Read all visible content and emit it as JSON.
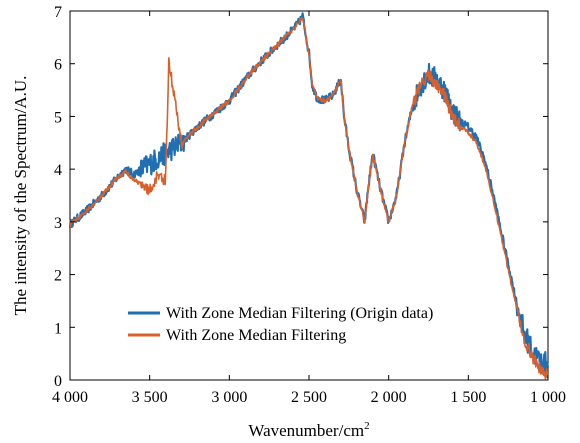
{
  "chart_data": {
    "type": "line",
    "title": "",
    "xlabel": "Wavenumber/cm",
    "xlabel_superscript": "2",
    "ylabel": "The intensity of the Spectrum/A.U.",
    "xlim": [
      4000,
      1000
    ],
    "ylim": [
      0,
      7
    ],
    "x_reversed": true,
    "x_ticks": [
      4000,
      3500,
      3000,
      2500,
      2000,
      1500,
      1000
    ],
    "x_tick_labels": [
      "4 000",
      "3 500",
      "3 000",
      "2 500",
      "2 000",
      "1 500",
      "1 000"
    ],
    "y_ticks": [
      0,
      1,
      2,
      3,
      4,
      5,
      6,
      7
    ],
    "y_tick_labels": [
      "0",
      "1",
      "2",
      "3",
      "4",
      "5",
      "6",
      "7"
    ],
    "grid": false,
    "legend_position": "bottom-left",
    "series": [
      {
        "name": "With Zone Median Filtering (Origin data)",
        "color": "#1f6fb4",
        "noise": 0.22,
        "x": [
          4000,
          3900,
          3800,
          3700,
          3650,
          3600,
          3550,
          3500,
          3450,
          3400,
          3380,
          3300,
          3200,
          3100,
          3000,
          2900,
          2800,
          2700,
          2600,
          2560,
          2540,
          2500,
          2480,
          2450,
          2400,
          2350,
          2300,
          2280,
          2250,
          2200,
          2150,
          2130,
          2100,
          2050,
          2000,
          1950,
          1900,
          1850,
          1800,
          1750,
          1700,
          1650,
          1600,
          1550,
          1500,
          1450,
          1400,
          1350,
          1300,
          1250,
          1200,
          1150,
          1100,
          1050,
          1000
        ],
        "y": [
          2.95,
          3.2,
          3.5,
          3.85,
          4.0,
          3.9,
          4.0,
          4.1,
          4.2,
          4.3,
          4.35,
          4.5,
          4.8,
          5.05,
          5.3,
          5.7,
          6.05,
          6.35,
          6.65,
          6.8,
          6.9,
          6.2,
          5.6,
          5.35,
          5.3,
          5.4,
          5.7,
          5.0,
          4.4,
          3.6,
          3.0,
          3.6,
          4.3,
          3.6,
          3.0,
          3.5,
          4.5,
          5.2,
          5.6,
          5.8,
          5.7,
          5.5,
          5.1,
          4.9,
          4.8,
          4.6,
          4.2,
          3.6,
          2.9,
          2.2,
          1.5,
          0.9,
          0.55,
          0.35,
          0.3
        ]
      },
      {
        "name": "With Zone Median Filtering",
        "color": "#d95f2b",
        "noise": 0.12,
        "x": [
          4000,
          3900,
          3800,
          3700,
          3650,
          3600,
          3550,
          3500,
          3450,
          3400,
          3380,
          3300,
          3200,
          3100,
          3000,
          2900,
          2800,
          2700,
          2600,
          2560,
          2540,
          2500,
          2480,
          2450,
          2400,
          2350,
          2300,
          2280,
          2250,
          2200,
          2150,
          2130,
          2100,
          2050,
          2000,
          1950,
          1900,
          1850,
          1800,
          1750,
          1700,
          1650,
          1600,
          1550,
          1500,
          1450,
          1400,
          1350,
          1300,
          1250,
          1200,
          1150,
          1100,
          1050,
          1000
        ],
        "y": [
          2.95,
          3.2,
          3.5,
          3.85,
          3.95,
          3.8,
          3.7,
          3.6,
          3.9,
          3.8,
          6.05,
          4.5,
          4.8,
          5.05,
          5.3,
          5.7,
          6.05,
          6.35,
          6.65,
          6.8,
          6.88,
          6.2,
          5.6,
          5.35,
          5.3,
          5.4,
          5.7,
          5.0,
          4.4,
          3.6,
          3.0,
          3.6,
          4.25,
          3.6,
          3.0,
          3.5,
          4.5,
          5.2,
          5.6,
          5.8,
          5.6,
          5.4,
          5.0,
          4.8,
          4.7,
          4.5,
          4.1,
          3.5,
          2.8,
          2.1,
          1.4,
          0.8,
          0.45,
          0.2,
          0.1
        ]
      }
    ]
  }
}
